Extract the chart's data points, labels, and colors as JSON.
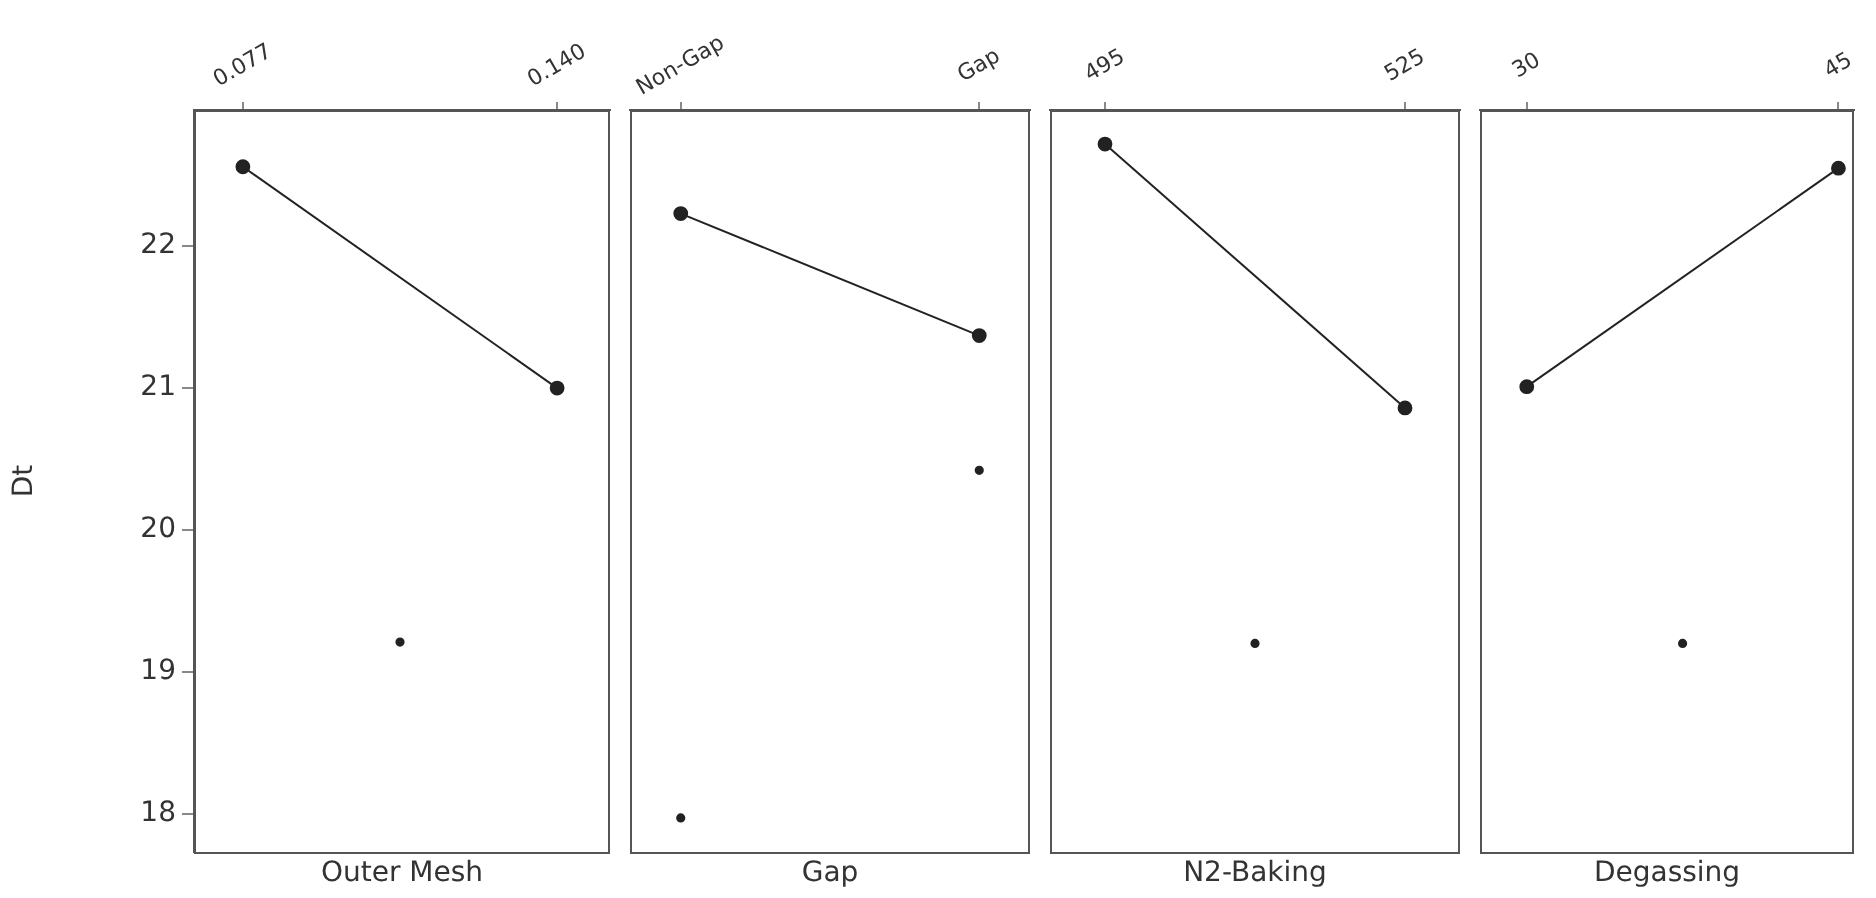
{
  "chart_data": [
    {
      "type": "line",
      "xlabel": "Outer Mesh",
      "ylabel": "Dt",
      "xlim": [
        0.0672,
        0.1506
      ],
      "xticks": [
        0.077,
        {
          "value": 0.14,
          "label": "0.140"
        }
      ],
      "ylim": [
        17.73,
        22.96
      ],
      "yticks": [
        18,
        19,
        20,
        21,
        22
      ],
      "grid": false,
      "legend": false,
      "marker": "circle",
      "line_style": "solid",
      "series": [
        {
          "type": "line",
          "color": "#222222",
          "x": [
            0.077,
            0.14
          ],
          "values": [
            22.56,
            21.0
          ]
        },
        {
          "type": "scatter",
          "color": "#222222",
          "x": [
            0.1085
          ],
          "values": [
            19.21
          ]
        }
      ]
    },
    {
      "type": "line",
      "xlabel": "Gap",
      "categories": [
        "Non-Gap",
        "Gap"
      ],
      "ylim": [
        17.73,
        22.96
      ],
      "tick_labels": "x",
      "grid": false,
      "legend": false,
      "marker": "circle",
      "line_style": "solid",
      "series": [
        {
          "type": "line",
          "color": "#222222",
          "values": [
            22.23,
            21.37
          ]
        },
        {
          "type": "scatter",
          "color": "#222222",
          "values": [
            17.97,
            20.42
          ]
        }
      ]
    },
    {
      "type": "line",
      "xlabel": "N2-Baking",
      "xlim": [
        489.5,
        530.5
      ],
      "xticks": [
        495,
        525
      ],
      "ylim": [
        17.73,
        22.96
      ],
      "tick_labels": "x",
      "grid": false,
      "legend": false,
      "marker": "circle",
      "line_style": "solid",
      "series": [
        {
          "type": "line",
          "color": "#222222",
          "x": [
            495,
            525
          ],
          "values": [
            22.72,
            20.86
          ]
        },
        {
          "type": "scatter",
          "color": "#222222",
          "x": [
            510
          ],
          "values": [
            19.2
          ]
        }
      ]
    },
    {
      "type": "line",
      "xlabel": "Degassing",
      "xlim": [
        27.75,
        45.75
      ],
      "xticks": [
        30,
        45
      ],
      "ylim": [
        17.73,
        22.96
      ],
      "tick_labels": "x",
      "grid": false,
      "legend": false,
      "marker": "circle",
      "line_style": "solid",
      "series": [
        {
          "type": "line",
          "color": "#222222",
          "x": [
            30,
            45
          ],
          "values": [
            21.01,
            22.55
          ]
        },
        {
          "type": "scatter",
          "color": "#222222",
          "x": [
            37.5
          ],
          "values": [
            19.2
          ]
        }
      ]
    }
  ]
}
